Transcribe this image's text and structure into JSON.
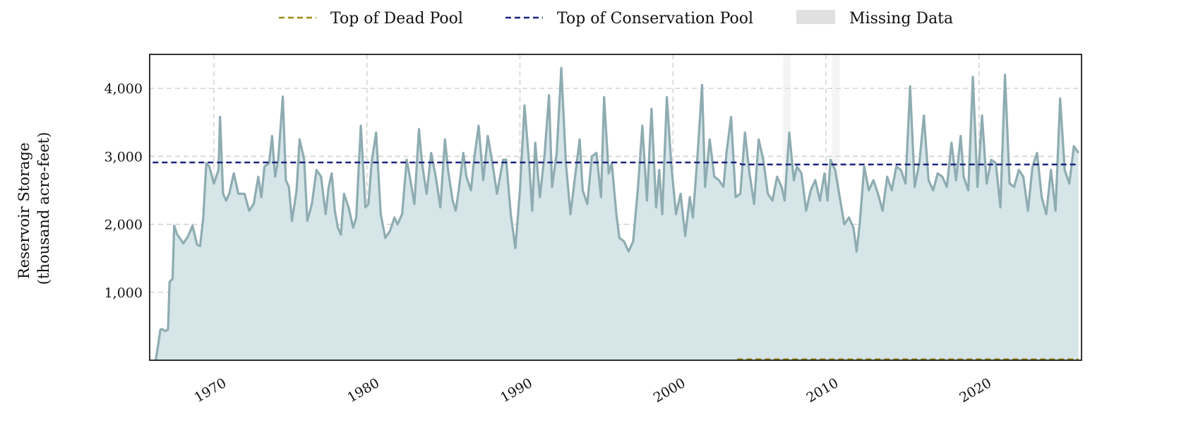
{
  "chart_data": {
    "type": "area",
    "title": "",
    "xlabel": "",
    "ylabel_lines": [
      "Reservoir Storage",
      "(thousand acre-feet)"
    ],
    "xlim": [
      1965.8,
      2026.7
    ],
    "ylim": [
      0,
      4500
    ],
    "yticks": [
      1000,
      2000,
      3000,
      4000
    ],
    "ytick_labels": [
      "1,000",
      "2,000",
      "3,000",
      "4,000"
    ],
    "xticks": [
      1970,
      1980,
      1990,
      2000,
      2010,
      2020
    ],
    "xtick_labels": [
      "1970",
      "1980",
      "1990",
      "2000",
      "2010",
      "2020"
    ],
    "grid": true,
    "legend": {
      "placement": "top-center",
      "entries": [
        "Top of Dead Pool",
        "Top of Conservation Pool",
        "Missing Data"
      ]
    },
    "colors": {
      "storage_line": "#8eacb1",
      "storage_fill": "#d5e5e8",
      "conservation": "#1a237e",
      "dead_pool": "#9a8a17",
      "missing": "#e0e0e0",
      "grid": "#cccccc"
    },
    "series": [
      {
        "role": "storage",
        "x": [
          1966.2,
          1966.5,
          1966.6,
          1966.8,
          1967.0,
          1967.1,
          1967.3,
          1967.4,
          1967.6,
          1968.0,
          1968.3,
          1968.6,
          1968.9,
          1969.1,
          1969.3,
          1969.5,
          1969.7,
          1970.0,
          1970.3,
          1970.4,
          1970.6,
          1970.8,
          1971.0,
          1971.3,
          1971.6,
          1972.0,
          1972.3,
          1972.6,
          1972.9,
          1973.1,
          1973.3,
          1973.6,
          1973.8,
          1974.0,
          1974.2,
          1974.5,
          1974.7,
          1974.9,
          1975.1,
          1975.4,
          1975.6,
          1975.9,
          1976.1,
          1976.4,
          1976.7,
          1977.0,
          1977.3,
          1977.5,
          1977.7,
          1977.9,
          1978.1,
          1978.3,
          1978.5,
          1978.8,
          1979.1,
          1979.3,
          1979.6,
          1979.9,
          1980.1,
          1980.3,
          1980.6,
          1980.9,
          1981.2,
          1981.5,
          1981.8,
          1982.0,
          1982.3,
          1982.6,
          1982.8,
          1983.1,
          1983.4,
          1983.6,
          1983.9,
          1984.2,
          1984.5,
          1984.8,
          1985.1,
          1985.3,
          1985.6,
          1985.8,
          1986.0,
          1986.3,
          1986.5,
          1986.8,
          1987.0,
          1987.3,
          1987.6,
          1987.9,
          1988.2,
          1988.5,
          1988.9,
          1989.1,
          1989.4,
          1989.7,
          1990.0,
          1990.3,
          1990.6,
          1990.8,
          1991.0,
          1991.3,
          1991.6,
          1991.9,
          1992.1,
          1992.4,
          1992.7,
          1993.0,
          1993.3,
          1993.6,
          1993.9,
          1994.1,
          1994.4,
          1994.7,
          1995.0,
          1995.3,
          1995.5,
          1995.8,
          1996.0,
          1996.3,
          1996.5,
          1996.8,
          1997.1,
          1997.4,
          1997.7,
          1998.0,
          1998.3,
          1998.6,
          1998.9,
          1999.1,
          1999.3,
          1999.6,
          1999.9,
          2000.2,
          2000.5,
          2000.8,
          2001.1,
          2001.3,
          2001.6,
          2001.9,
          2002.1,
          2002.4,
          2002.7,
          2003.0,
          2003.3,
          2003.5,
          2003.8,
          2004.1,
          2004.4,
          2004.7,
          2005.0,
          2005.3,
          2005.6,
          2005.9,
          2006.2,
          2006.5,
          2006.8,
          2007.1,
          2007.3,
          2007.6,
          2007.9,
          2008.1,
          2008.4,
          2008.7,
          2009.0,
          2009.3,
          2009.6,
          2009.9,
          2010.1,
          2010.3,
          2010.6,
          2010.9,
          2011.2,
          2011.5,
          2011.8,
          2012.0,
          2012.2,
          2012.5,
          2012.8,
          2013.1,
          2013.4,
          2013.7,
          2014.0,
          2014.3,
          2014.6,
          2014.9,
          2015.2,
          2015.5,
          2015.8,
          2016.1,
          2016.4,
          2016.7,
          2017.0,
          2017.3,
          2017.6,
          2017.9,
          2018.2,
          2018.5,
          2018.8,
          2019.0,
          2019.3,
          2019.6,
          2019.9,
          2020.2,
          2020.5,
          2020.8,
          2021.1,
          2021.4,
          2021.7,
          2022.0,
          2022.3,
          2022.6,
          2022.9,
          2023.2,
          2023.5,
          2023.8,
          2024.1,
          2024.4,
          2024.7,
          2025.0,
          2025.3,
          2025.6,
          2025.9,
          2026.2,
          2026.5
        ],
        "y": [
          0,
          450,
          460,
          430,
          450,
          1150,
          1200,
          1980,
          1850,
          1720,
          1820,
          1980,
          1700,
          1680,
          2100,
          2900,
          2850,
          2600,
          2800,
          3580,
          2450,
          2350,
          2450,
          2750,
          2450,
          2450,
          2200,
          2300,
          2700,
          2400,
          2850,
          2900,
          3300,
          2700,
          2950,
          3880,
          2650,
          2550,
          2050,
          2500,
          3250,
          2950,
          2050,
          2300,
          2800,
          2700,
          2150,
          2550,
          2750,
          2200,
          1950,
          1850,
          2450,
          2250,
          1950,
          2100,
          3450,
          2250,
          2300,
          2900,
          3350,
          2150,
          1800,
          1900,
          2100,
          2000,
          2150,
          2950,
          2700,
          2300,
          3400,
          2900,
          2450,
          3050,
          2700,
          2250,
          3250,
          2800,
          2350,
          2200,
          2500,
          3050,
          2700,
          2500,
          2950,
          3450,
          2650,
          3300,
          2900,
          2450,
          2950,
          2950,
          2150,
          1650,
          2500,
          3750,
          2900,
          2200,
          3200,
          2400,
          3000,
          3900,
          2550,
          3050,
          4300,
          2900,
          2150,
          2700,
          3250,
          2500,
          2300,
          3000,
          3050,
          2400,
          3870,
          2750,
          2900,
          2150,
          1800,
          1750,
          1600,
          1750,
          2500,
          3450,
          2350,
          3700,
          2250,
          2800,
          2150,
          3870,
          2850,
          2150,
          2450,
          1830,
          2400,
          2100,
          3000,
          4050,
          2550,
          3250,
          2700,
          2650,
          2550,
          3050,
          3580,
          2400,
          2450,
          3350,
          2750,
          2300,
          3250,
          2950,
          2450,
          2350,
          2700,
          2550,
          2350,
          3350,
          2650,
          2850,
          2750,
          2200,
          2500,
          2650,
          2350,
          2750,
          2350,
          2950,
          2800,
          2400,
          2000,
          2100,
          1950,
          1600,
          2000,
          2850,
          2500,
          2650,
          2450,
          2200,
          2700,
          2500,
          2850,
          2800,
          2600,
          4030,
          2550,
          2900,
          3600,
          2650,
          2500,
          2750,
          2700,
          2550,
          3200,
          2650,
          3300,
          2700,
          2500,
          4170,
          2550,
          3600,
          2600,
          2950,
          2900,
          2250,
          4200,
          2600,
          2550,
          2800,
          2700,
          2200,
          2850,
          3050,
          2400,
          2150,
          2800,
          2200,
          3850,
          2800,
          2600,
          3150,
          3050
        ]
      },
      {
        "role": "conservation",
        "name": "Top of Conservation Pool",
        "x": [
          1966.0,
          2004.2,
          2004.5,
          2026.5
        ],
        "y": [
          2910,
          2910,
          2880,
          2880
        ]
      },
      {
        "role": "dead_pool",
        "name": "Top of Dead Pool",
        "x": [
          2004.2,
          2026.5
        ],
        "y": [
          15,
          15
        ]
      }
    ],
    "missing_ranges": [
      [
        2007.2,
        2007.7
      ],
      [
        2010.4,
        2010.9
      ]
    ]
  }
}
